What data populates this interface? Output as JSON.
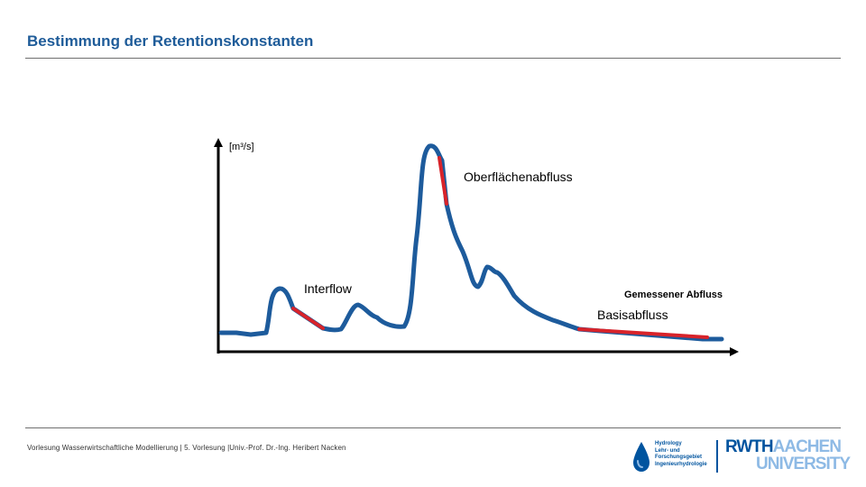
{
  "slide": {
    "title": "Bestimmung der Retentionskonstanten",
    "footer": "Vorlesung Wasserwirtschaftliche Modellierung | 5. Vorlesung |Univ.-Prof. Dr.-Ing. Heribert Nacken"
  },
  "chart_data": {
    "type": "line",
    "ylabel": "[m³/s]",
    "xlabel": "",
    "series": [
      {
        "name": "Gemessener Abfluss",
        "color": "#1d5b9c"
      }
    ],
    "annotations": [
      {
        "text": "Oberflächenabfluss",
        "segment_color": "#d8232a"
      },
      {
        "text": "Interflow",
        "segment_color": "#d8232a"
      },
      {
        "text": "Basisabfluss",
        "segment_color": "#d8232a"
      }
    ],
    "grid": false,
    "legend": "none"
  },
  "logo": {
    "institute_lines": [
      "Hydrology",
      "Lehr- und",
      "Forschungsgebiet",
      "Ingenieurhydrologie"
    ],
    "rwth_word": "RWTH",
    "aachen_word": "AACHEN",
    "university_word": "UNIVERSITY",
    "rwth_color": "#00549f",
    "aachen_color": "#8ebae5",
    "drop_icon": "water-drop-icon"
  }
}
